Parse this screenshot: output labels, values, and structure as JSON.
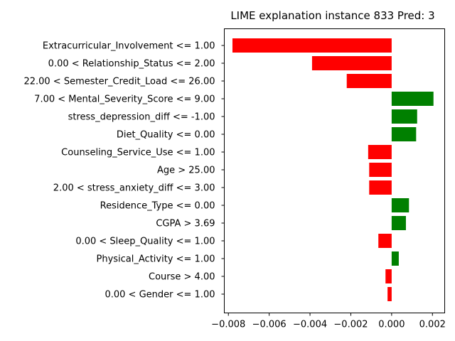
{
  "chart_data": {
    "type": "bar",
    "orientation": "horizontal",
    "title": "LIME explanation instance 833 Pred: 3",
    "xlabel": "",
    "ylabel": "",
    "xlim": [
      -0.0082,
      0.0026
    ],
    "xticks": [
      -0.008,
      -0.006,
      -0.004,
      -0.002,
      0.0,
      0.002
    ],
    "xtick_labels": [
      "−0.008",
      "−0.006",
      "−0.004",
      "−0.002",
      "0.000",
      "0.002"
    ],
    "positive_color": "#008000",
    "negative_color": "#ff0000",
    "grid": false,
    "categories": [
      "Extracurricular_Involvement <= 1.00",
      "0.00 < Relationship_Status <= 2.00",
      "22.00 < Semester_Credit_Load <= 26.00",
      "7.00 < Mental_Severity_Score <= 9.00",
      "stress_depression_diff <= -1.00",
      "Diet_Quality <= 0.00",
      "Counseling_Service_Use <= 1.00",
      "Age > 25.00",
      "2.00 < stress_anxiety_diff <= 3.00",
      "Residence_Type <= 0.00",
      "CGPA > 3.69",
      "0.00 < Sleep_Quality <= 1.00",
      "Physical_Activity <= 1.00",
      "Course > 4.00",
      "0.00 < Gender <= 1.00"
    ],
    "values": [
      -0.0078,
      -0.0039,
      -0.0022,
      0.00205,
      0.00125,
      0.0012,
      -0.00115,
      -0.0011,
      -0.0011,
      0.00085,
      0.0007,
      -0.00065,
      0.00035,
      -0.0003,
      -0.0002
    ]
  }
}
